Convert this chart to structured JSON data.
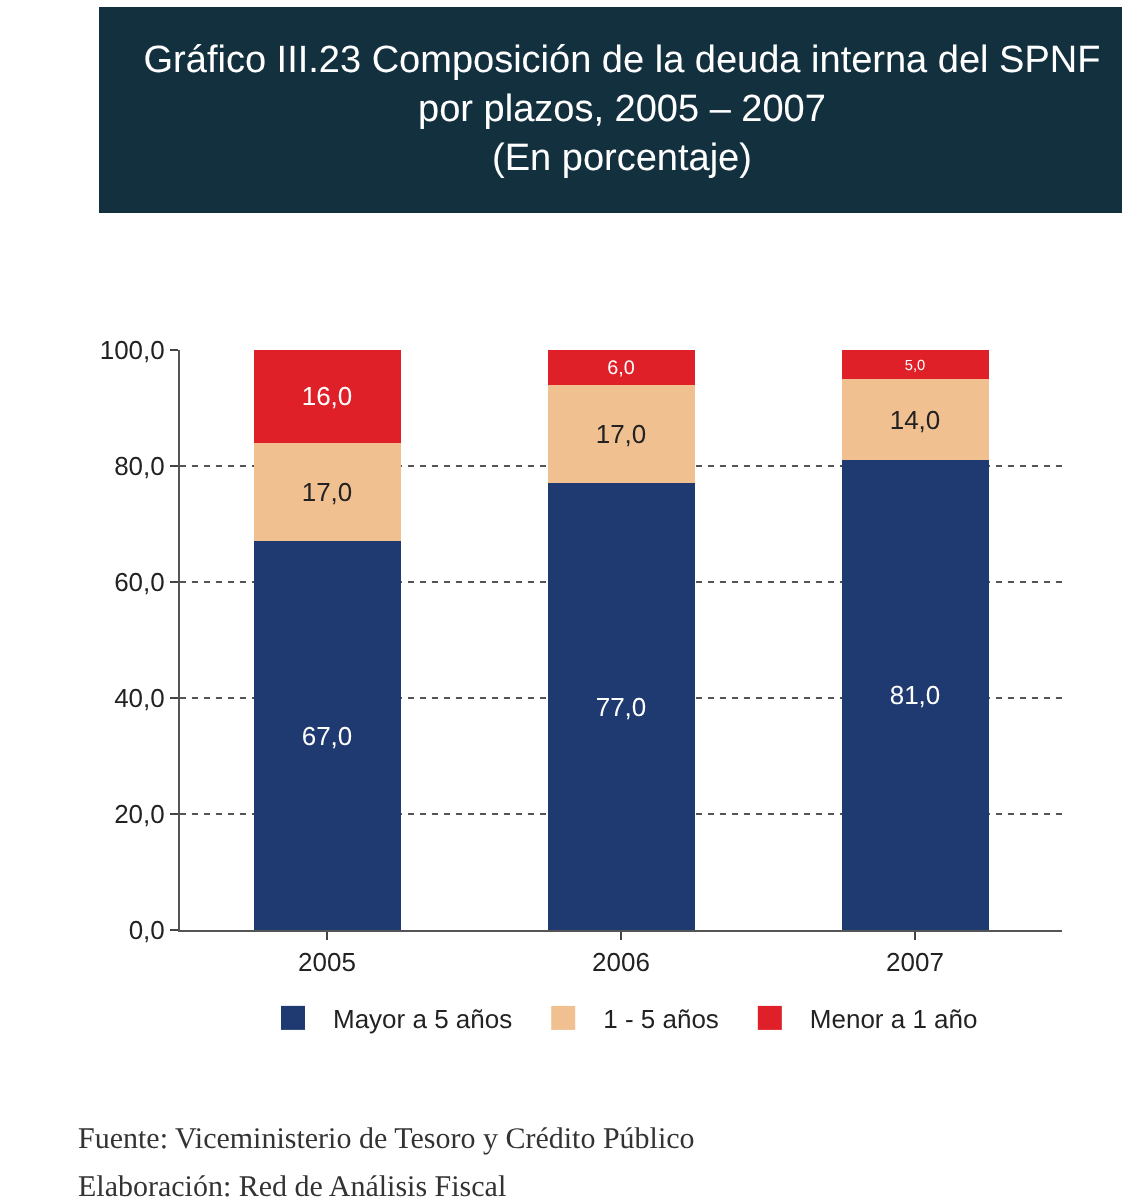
{
  "chart_data": {
    "type": "bar",
    "title": "Gráfico III.23 Composición de la deuda interna del SPNF por plazos, 2005 – 2007",
    "subtitle": "(En porcentaje)",
    "categories": [
      "2005",
      "2006",
      "2007"
    ],
    "stacked": true,
    "series": [
      {
        "name": "Mayor a 5 años",
        "color": "#1f3a70",
        "values": [
          67,
          77,
          81
        ],
        "value_labels": [
          "67,0",
          "77,0",
          "81,0"
        ]
      },
      {
        "name": "1 - 5 años",
        "color": "#f0c090",
        "values": [
          17,
          17,
          14
        ],
        "value_labels": [
          "17,0",
          "17,0",
          "14,0"
        ]
      },
      {
        "name": "Menor a 1 año",
        "color": "#e02028",
        "values": [
          16,
          6,
          5
        ],
        "value_labels": [
          "16,0",
          "6,0",
          "5,0"
        ]
      }
    ],
    "ylim": [
      0,
      100
    ],
    "yticks": [
      {
        "value": 0,
        "label": "0,0"
      },
      {
        "value": 20,
        "label": "20,0"
      },
      {
        "value": 40,
        "label": "40,0"
      },
      {
        "value": 60,
        "label": "60,0"
      },
      {
        "value": 80,
        "label": "80,0"
      },
      {
        "value": 100,
        "label": "100,0"
      }
    ],
    "grid": "y",
    "legend": "bottom",
    "annotations": [
      "Fuente: Viceministerio de Tesoro y Crédito Público",
      "Elaboración: Red de Análisis Fiscal"
    ]
  }
}
